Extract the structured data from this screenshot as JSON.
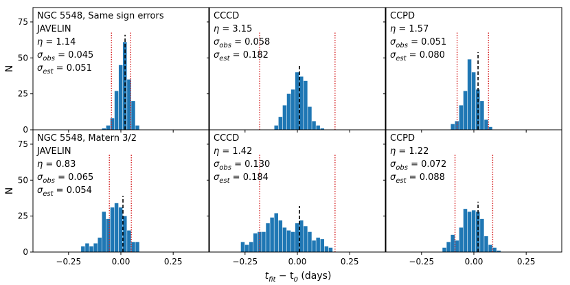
{
  "chart_data": {
    "type": "bar",
    "subtype": "histogram-grid",
    "bar_color": "#1f77b4",
    "median_line_color": "#000000",
    "error_line_color": "#d62728",
    "xlabel": {
      "main": "t",
      "sub": "fit",
      "mid": " − t",
      "sub2": "0",
      "tail": " (days)"
    },
    "ylabel": "N",
    "xlim": [
      -0.42,
      0.42
    ],
    "ylim": [
      0,
      85
    ],
    "xticks": [
      -0.25,
      0.0,
      0.25
    ],
    "xtick_labels": [
      "−0.25",
      "0.00",
      "0.25"
    ],
    "yticks": [
      0,
      25,
      50,
      75
    ],
    "ytick_labels": [
      "0",
      "25",
      "50",
      "75"
    ],
    "bin_width": 0.02,
    "panels": [
      {
        "id": "row1-javelin",
        "lines": [
          {
            "text": "NGC 5548, Same sign errors"
          },
          {
            "text": "JAVELIN"
          },
          {
            "sym": "η",
            "sub": "",
            "value": " = 1.14"
          },
          {
            "sym": "σ",
            "sub": "obs",
            "value": " = 0.045"
          },
          {
            "sym": "σ",
            "sub": "est",
            "value": " = 0.051"
          }
        ],
        "median": 0.02,
        "error_lines": [
          -0.045,
          0.047
        ],
        "bins_start": -0.09,
        "counts": [
          1,
          3,
          8,
          27,
          45,
          61,
          35,
          20,
          3
        ]
      },
      {
        "id": "row1-cccd",
        "lines": [
          {
            "text": "CCCD"
          },
          {
            "sym": "η",
            "sub": "",
            "value": " = 3.15"
          },
          {
            "sym": "σ",
            "sub": "obs",
            "value": " = 0.058"
          },
          {
            "sym": "σ",
            "sub": "est",
            "value": " = 0.182"
          }
        ],
        "median": 0.01,
        "error_lines": [
          -0.18,
          0.18
        ],
        "bins_start": -0.11,
        "counts": [
          3,
          9,
          17,
          25,
          28,
          40,
          37,
          34,
          16,
          6,
          3,
          1
        ]
      },
      {
        "id": "row1-ccpd",
        "lines": [
          {
            "text": "CCPD"
          },
          {
            "sym": "η",
            "sub": "",
            "value": " = 1.57"
          },
          {
            "sym": "σ",
            "sub": "obs",
            "value": " = 0.051"
          },
          {
            "sym": "σ",
            "sub": "est",
            "value": " = 0.080"
          }
        ],
        "median": 0.02,
        "error_lines": [
          -0.08,
          0.07
        ],
        "bins_start": -0.11,
        "counts": [
          4,
          6,
          17,
          27,
          49,
          40,
          28,
          20,
          7,
          2
        ]
      },
      {
        "id": "row2-javelin",
        "lines": [
          {
            "text": "NGC 5548, Matern 3/2"
          },
          {
            "text": "JAVELIN"
          },
          {
            "sym": "η",
            "sub": "",
            "value": " = 0.83"
          },
          {
            "sym": "σ",
            "sub": "obs",
            "value": " = 0.065"
          },
          {
            "sym": "σ",
            "sub": "est",
            "value": " = 0.054"
          }
        ],
        "median": 0.01,
        "error_lines": [
          -0.055,
          0.05
        ],
        "bins_start": -0.19,
        "counts": [
          4,
          6,
          4,
          6,
          10,
          28,
          23,
          31,
          34,
          31,
          25,
          15,
          7,
          7
        ]
      },
      {
        "id": "row2-cccd",
        "lines": [
          {
            "text": "CCCD"
          },
          {
            "sym": "η",
            "sub": "",
            "value": " = 1.42"
          },
          {
            "sym": "σ",
            "sub": "obs",
            "value": " = 0.130"
          },
          {
            "sym": "σ",
            "sub": "est",
            "value": " = 0.184"
          }
        ],
        "median": 0.01,
        "error_lines": [
          -0.18,
          0.18
        ],
        "bins_start": -0.27,
        "counts": [
          7,
          5,
          7,
          13,
          14,
          14,
          20,
          24,
          27,
          22,
          17,
          15,
          14,
          20,
          22,
          18,
          14,
          8,
          10,
          9,
          4,
          3
        ]
      },
      {
        "id": "row2-ccpd",
        "lines": [
          {
            "text": "CCPD"
          },
          {
            "sym": "η",
            "sub": "",
            "value": " = 1.22"
          },
          {
            "sym": "σ",
            "sub": "obs",
            "value": " = 0.072"
          },
          {
            "sym": "σ",
            "sub": "est",
            "value": " = 0.088"
          }
        ],
        "median": 0.02,
        "error_lines": [
          -0.09,
          0.09
        ],
        "bins_start": -0.15,
        "counts": [
          3,
          7,
          12,
          8,
          17,
          30,
          28,
          29,
          28,
          23,
          11,
          5,
          3,
          1
        ]
      }
    ]
  }
}
